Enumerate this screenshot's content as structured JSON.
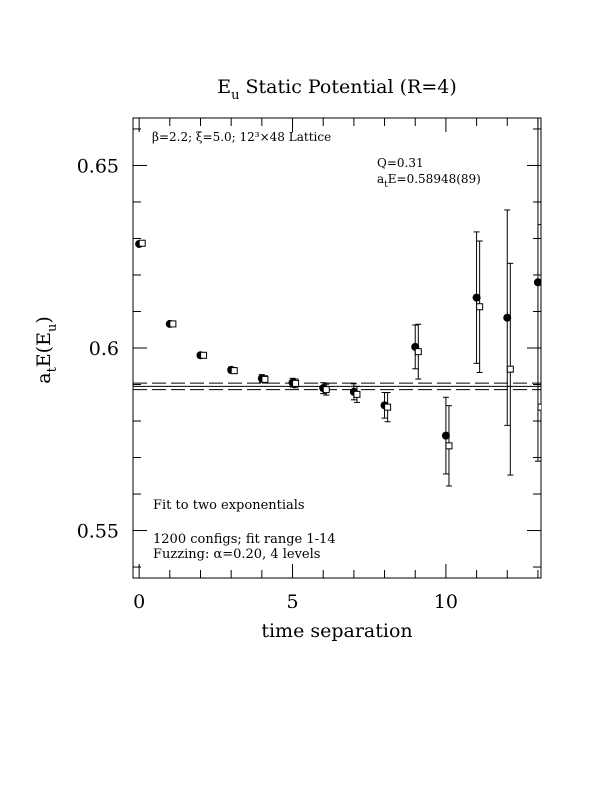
{
  "chart_data": {
    "type": "scatter",
    "title": {
      "main": "E",
      "sub": "u",
      "rest": " Static Potential (R=4)"
    },
    "xlabel": "time separation",
    "ylabel": {
      "a": "a",
      "a_sub": "t",
      "mid": "E(E",
      "mid_sub": "u",
      "end": ")"
    },
    "xlim": [
      -0.2,
      13.1
    ],
    "ylim": [
      0.537,
      0.663
    ],
    "xticks": [
      0,
      5,
      10
    ],
    "xtick_labels": [
      "0",
      "5",
      "10"
    ],
    "yticks": [
      0.55,
      0.6,
      0.65
    ],
    "ytick_labels": [
      "0.55",
      "0.6",
      "0.65"
    ],
    "annotations": {
      "lattice": "β=2.2; ξ=5.0; 12³×48 Lattice",
      "q": "Q=0.31",
      "energy_prefix": "a",
      "energy_sub": "t",
      "energy_rest": "E=0.58948(89)",
      "fit": "Fit to two exponentials",
      "configs": "1200 configs; fit range 1-14",
      "fuzzing": "Fuzzing: α=0.20, 4 levels"
    },
    "fit_line": {
      "value": 0.58948,
      "error": 0.00089
    },
    "series": [
      {
        "marker": "filled-circle",
        "points": [
          {
            "x": 0,
            "y": 0.6285,
            "err": 0.0005
          },
          {
            "x": 1,
            "y": 0.6066,
            "err": 0.0006
          },
          {
            "x": 2,
            "y": 0.598,
            "err": 0.0007
          },
          {
            "x": 3,
            "y": 0.594,
            "err": 0.0008
          },
          {
            "x": 4,
            "y": 0.5917,
            "err": 0.001
          },
          {
            "x": 5,
            "y": 0.5905,
            "err": 0.0012
          },
          {
            "x": 6,
            "y": 0.589,
            "err": 0.0015
          },
          {
            "x": 7,
            "y": 0.588,
            "err": 0.0022
          },
          {
            "x": 8,
            "y": 0.5843,
            "err": 0.0035
          },
          {
            "x": 9,
            "y": 0.6003,
            "err": 0.006
          },
          {
            "x": 10,
            "y": 0.576,
            "err": 0.0105
          },
          {
            "x": 11,
            "y": 0.6138,
            "err": 0.018
          },
          {
            "x": 12,
            "y": 0.6083,
            "err": 0.0295
          },
          {
            "x": 13,
            "y": 0.618,
            "err": 0.049
          }
        ]
      },
      {
        "marker": "open-square",
        "points": [
          {
            "x": 0.1,
            "y": 0.6287,
            "err": 0.0005
          },
          {
            "x": 1.1,
            "y": 0.6066,
            "err": 0.0006
          },
          {
            "x": 2.1,
            "y": 0.598,
            "err": 0.0007
          },
          {
            "x": 3.1,
            "y": 0.5938,
            "err": 0.0008
          },
          {
            "x": 4.1,
            "y": 0.5914,
            "err": 0.001
          },
          {
            "x": 5.1,
            "y": 0.5903,
            "err": 0.0012
          },
          {
            "x": 6.1,
            "y": 0.5886,
            "err": 0.0015
          },
          {
            "x": 7.1,
            "y": 0.5873,
            "err": 0.0022
          },
          {
            "x": 8.1,
            "y": 0.5838,
            "err": 0.004
          },
          {
            "x": 9.1,
            "y": 0.599,
            "err": 0.0075
          },
          {
            "x": 10.1,
            "y": 0.5732,
            "err": 0.011
          },
          {
            "x": 11.1,
            "y": 0.6113,
            "err": 0.018
          },
          {
            "x": 12.1,
            "y": 0.5942,
            "err": 0.029
          },
          {
            "x": 13.1,
            "y": 0.5838,
            "err": 0.05
          }
        ]
      }
    ]
  }
}
